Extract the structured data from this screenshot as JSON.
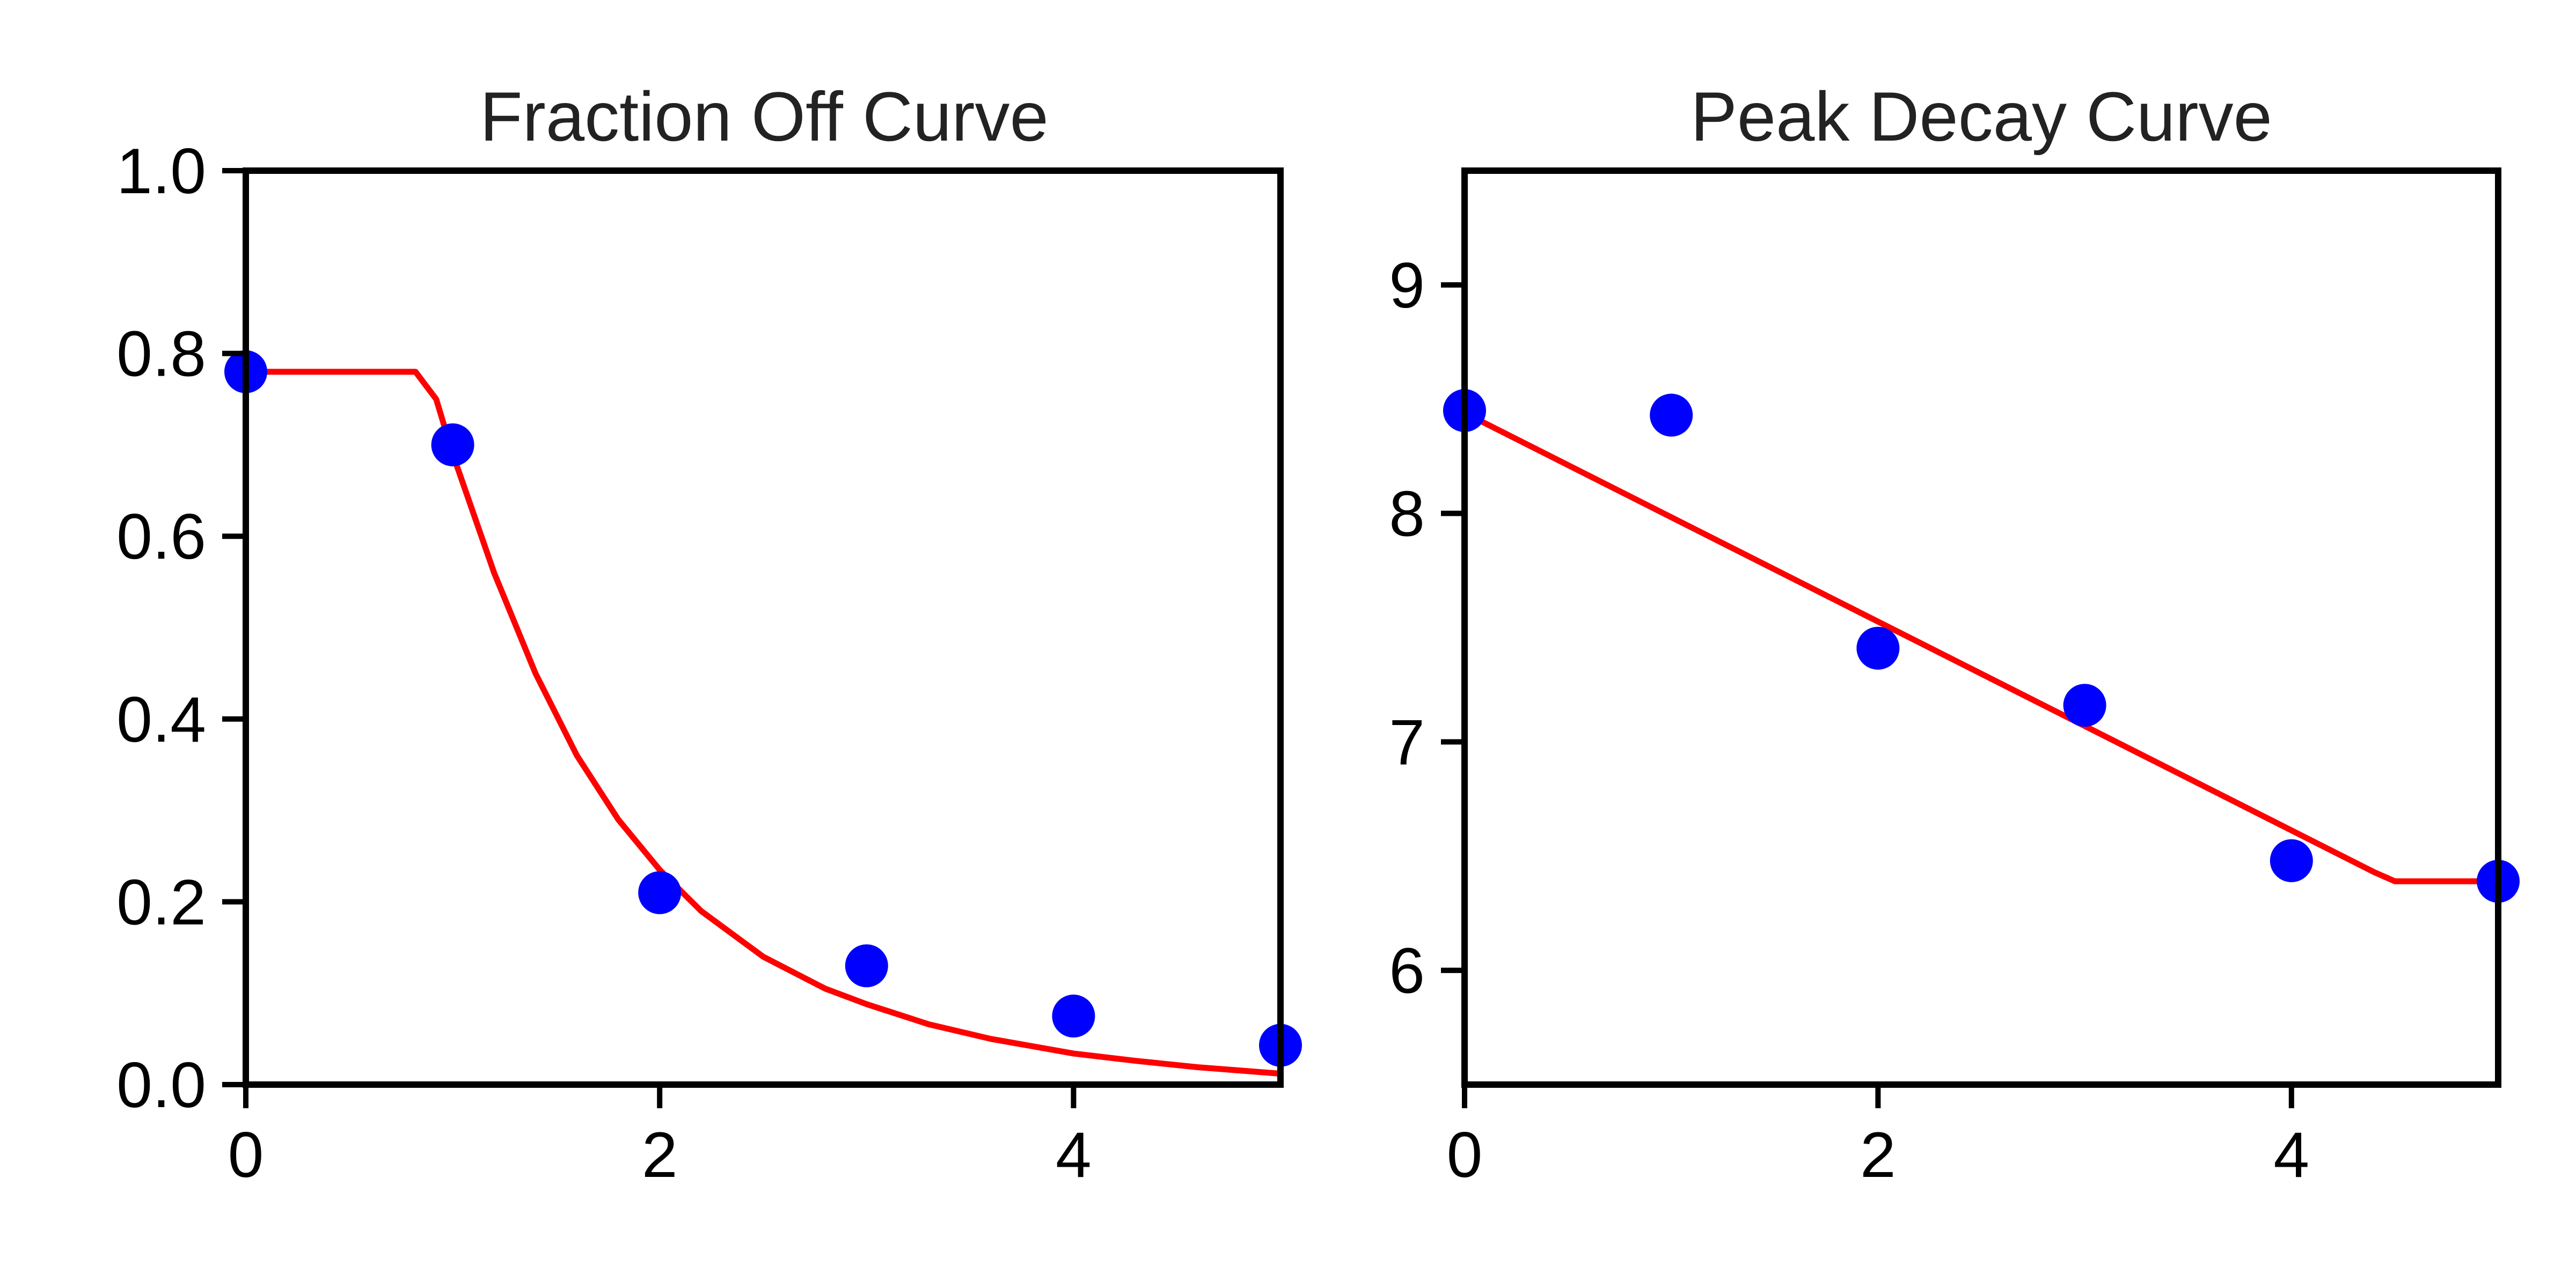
{
  "chart_data": [
    {
      "type": "scatter",
      "title": "Fraction Off Curve",
      "xlabel": "",
      "ylabel": "",
      "xlim": [
        0,
        5
      ],
      "ylim": [
        0,
        1.0
      ],
      "x_ticks": [
        "0",
        "2",
        "4"
      ],
      "y_ticks": [
        "0.0",
        "0.2",
        "0.4",
        "0.6",
        "0.8",
        "1.0"
      ],
      "grid": false,
      "legend": "none",
      "series": [
        {
          "kind": "scatter",
          "color": "#0000ff",
          "x": [
            0,
            1,
            2,
            3,
            4,
            5
          ],
          "y": [
            0.78,
            0.7,
            0.21,
            0.13,
            0.075,
            0.043
          ]
        },
        {
          "kind": "line",
          "color": "#ff0000",
          "x": [
            0,
            0.82,
            0.92,
            1.0,
            1.2,
            1.4,
            1.6,
            1.8,
            2.0,
            2.2,
            2.5,
            2.8,
            3.0,
            3.3,
            3.6,
            4.0,
            4.3,
            4.6,
            5.0
          ],
          "y": [
            0.78,
            0.78,
            0.75,
            0.69,
            0.56,
            0.45,
            0.36,
            0.29,
            0.235,
            0.19,
            0.14,
            0.105,
            0.088,
            0.066,
            0.05,
            0.034,
            0.026,
            0.019,
            0.012
          ]
        }
      ]
    },
    {
      "type": "scatter",
      "title": "Peak Decay Curve",
      "xlabel": "",
      "ylabel": "",
      "xlim": [
        0,
        5
      ],
      "ylim": [
        5.5,
        9.5
      ],
      "x_ticks": [
        "0",
        "2",
        "4"
      ],
      "y_ticks": [
        "6",
        "7",
        "8",
        "9"
      ],
      "grid": false,
      "legend": "none",
      "series": [
        {
          "kind": "scatter",
          "color": "#0000ff",
          "x": [
            0,
            1,
            2,
            3,
            4,
            5
          ],
          "y": [
            8.45,
            8.43,
            7.41,
            7.16,
            6.48,
            6.39
          ]
        },
        {
          "kind": "line",
          "color": "#ff0000",
          "x": [
            0,
            4.4,
            4.5,
            5.0
          ],
          "y": [
            8.44,
            6.43,
            6.39,
            6.39
          ]
        }
      ]
    }
  ]
}
